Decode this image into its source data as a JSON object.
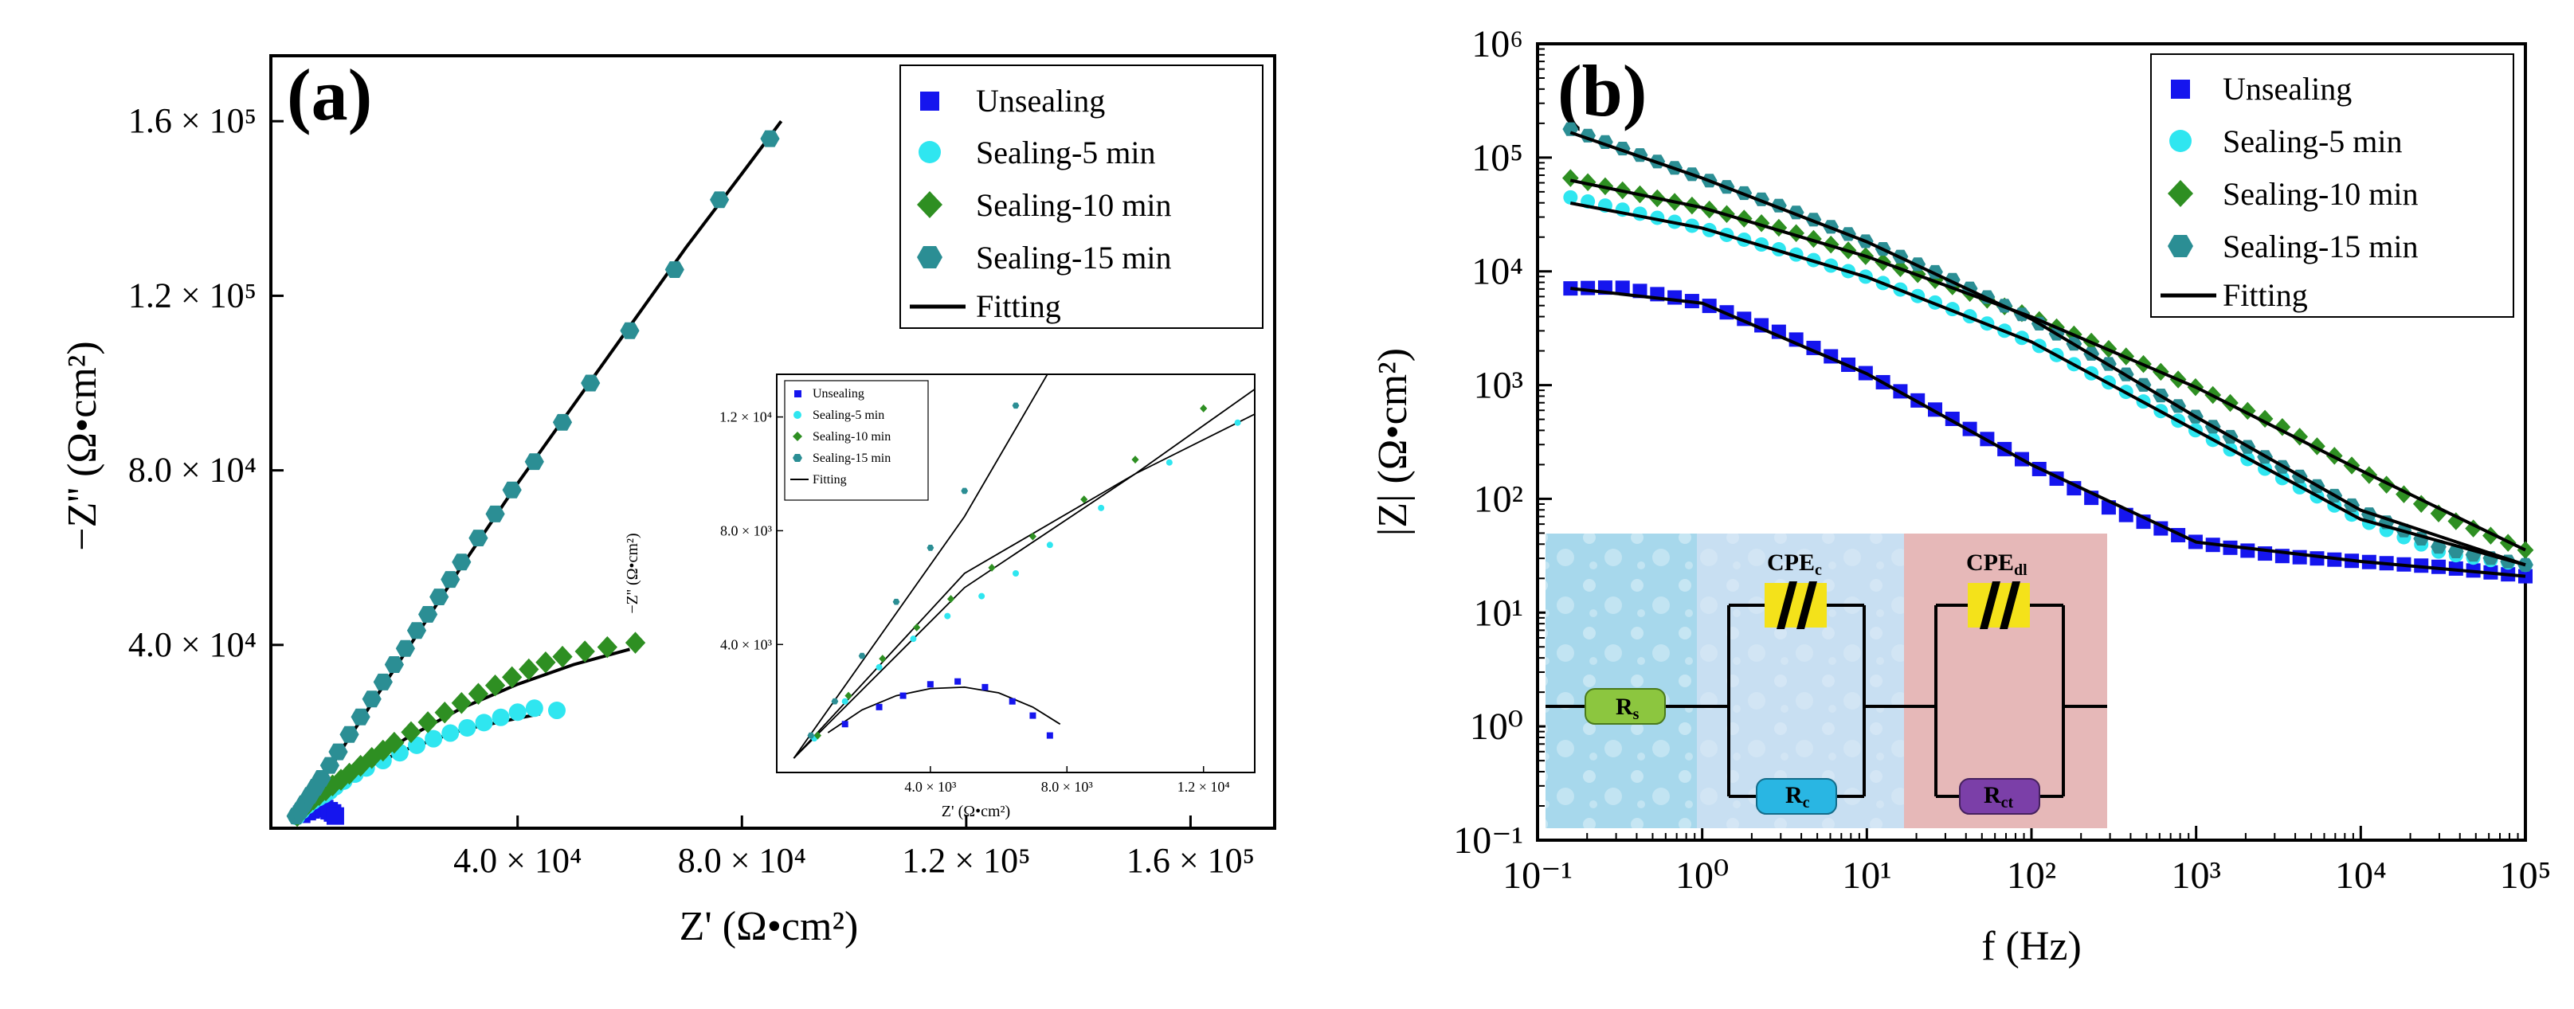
{
  "colors": {
    "unsealing": "#1515ee",
    "sealing5": "#2fe6f0",
    "sealing10": "#2e8f22",
    "sealing15": "#2b8e94",
    "fitting": "#000000",
    "panel_rs": "#a7d8ec",
    "panel_rc": "#c8dff2",
    "panel_rct": "#e6b8b8",
    "rs_fill": "#8cc63f",
    "rc_fill": "#29b6e3",
    "rct_fill": "#7b3fa8",
    "cpe_fill": "#f4e21a"
  },
  "chart_data": [
    {
      "id": "a",
      "type": "scatter",
      "panel_label": "(a)",
      "xlabel": "Z' (Ω•cm²)",
      "ylabel": "−Z'' (Ω•cm²)",
      "xlim": [
        -4000,
        175000
      ],
      "ylim": [
        -2000,
        175000
      ],
      "x_ticks": [
        {
          "value": 40000,
          "label": "4.0 × 10⁴"
        },
        {
          "value": 80000,
          "label": "8.0 × 10⁴"
        },
        {
          "value": 120000,
          "label": "1.2 × 10⁵"
        },
        {
          "value": 160000,
          "label": "1.6 × 10⁵"
        }
      ],
      "y_ticks": [
        {
          "value": 40000,
          "label": "4.0 × 10⁴"
        },
        {
          "value": 80000,
          "label": "8.0 × 10⁴"
        },
        {
          "value": 120000,
          "label": "1.2 × 10⁵"
        },
        {
          "value": 160000,
          "label": "1.6 × 10⁵"
        }
      ],
      "legend": {
        "position": "top-right",
        "entries": [
          "Unsealing",
          "Sealing-5 min",
          "Sealing-10 min",
          "Sealing-15 min",
          "Fitting"
        ]
      },
      "series": [
        {
          "name": "Unsealing",
          "marker": "square",
          "color_key": "unsealing",
          "points": [
            [
              1500,
              1200
            ],
            [
              2500,
              1800
            ],
            [
              3200,
              2200
            ],
            [
              4000,
              2600
            ],
            [
              4800,
              2700
            ],
            [
              5600,
              2500
            ],
            [
              6400,
              2000
            ],
            [
              7000,
              1500
            ],
            [
              7500,
              800
            ]
          ]
        },
        {
          "name": "Sealing-5 min",
          "marker": "circle",
          "color_key": "sealing5",
          "points": [
            [
              600,
              700
            ],
            [
              1500,
              2000
            ],
            [
              2500,
              3200
            ],
            [
              3500,
              4200
            ],
            [
              4500,
              5000
            ],
            [
              5500,
              5700
            ],
            [
              6500,
              6500
            ],
            [
              7500,
              7500
            ],
            [
              9000,
              8800
            ],
            [
              11000,
              10400
            ],
            [
              13000,
              11800
            ],
            [
              16000,
              13500
            ],
            [
              19000,
              15300
            ],
            [
              22000,
              17000
            ],
            [
              25000,
              18500
            ],
            [
              28000,
              19800
            ],
            [
              31000,
              21000
            ],
            [
              34000,
              22200
            ],
            [
              37000,
              23400
            ],
            [
              40000,
              24600
            ],
            [
              43000,
              25500
            ],
            [
              47000,
              25000
            ]
          ]
        },
        {
          "name": "Sealing-10 min",
          "marker": "diamond",
          "color_key": "sealing10",
          "points": [
            [
              700,
              800
            ],
            [
              1600,
              2200
            ],
            [
              2600,
              3500
            ],
            [
              3600,
              4600
            ],
            [
              4600,
              5600
            ],
            [
              5800,
              6700
            ],
            [
              7000,
              7800
            ],
            [
              8500,
              9100
            ],
            [
              10000,
              10500
            ],
            [
              12000,
              12300
            ],
            [
              14000,
              14100
            ],
            [
              16000,
              15800
            ],
            [
              18000,
              17600
            ],
            [
              21000,
              20000
            ],
            [
              24000,
              22300
            ],
            [
              27000,
              24500
            ],
            [
              30000,
              26700
            ],
            [
              33000,
              28800
            ],
            [
              36000,
              30700
            ],
            [
              39000,
              32600
            ],
            [
              42000,
              34400
            ],
            [
              45000,
              36000
            ],
            [
              48000,
              37300
            ],
            [
              52000,
              38500
            ],
            [
              56000,
              39500
            ],
            [
              61000,
              40500
            ]
          ]
        },
        {
          "name": "Sealing-15 min",
          "marker": "hexagon",
          "color_key": "sealing15",
          "points": [
            [
              500,
              800
            ],
            [
              1200,
              2000
            ],
            [
              2000,
              3600
            ],
            [
              3000,
              5500
            ],
            [
              4000,
              7400
            ],
            [
              5000,
              9400
            ],
            [
              6500,
              12400
            ],
            [
              8000,
              15500
            ],
            [
              10000,
              19500
            ],
            [
              12000,
              23500
            ],
            [
              14000,
              27600
            ],
            [
              16000,
              31500
            ],
            [
              18000,
              35500
            ],
            [
              20000,
              39200
            ],
            [
              22000,
              43300
            ],
            [
              24000,
              47000
            ],
            [
              26000,
              51000
            ],
            [
              28000,
              55000
            ],
            [
              30000,
              59000
            ],
            [
              33000,
              64500
            ],
            [
              36000,
              70000
            ],
            [
              39000,
              75500
            ],
            [
              43000,
              82000
            ],
            [
              48000,
              91000
            ],
            [
              53000,
              100000
            ],
            [
              60000,
              112000
            ],
            [
              68000,
              126000
            ],
            [
              76000,
              142000
            ],
            [
              85000,
              156000
            ]
          ]
        }
      ],
      "fits": [
        {
          "name": "Unsealing fit",
          "points": [
            [
              1000,
              900
            ],
            [
              2000,
              1700
            ],
            [
              3000,
              2200
            ],
            [
              4000,
              2450
            ],
            [
              5000,
              2500
            ],
            [
              6000,
              2300
            ],
            [
              7000,
              1800
            ],
            [
              7800,
              1200
            ]
          ]
        },
        {
          "name": "Sealing-5 min fit",
          "points": [
            [
              0,
              0
            ],
            [
              5000,
              6000
            ],
            [
              10000,
              10000
            ],
            [
              20000,
              16000
            ],
            [
              30000,
              20500
            ],
            [
              40000,
              23200
            ],
            [
              44000,
              24200
            ]
          ]
        },
        {
          "name": "Sealing-10 min fit",
          "points": [
            [
              0,
              0
            ],
            [
              5000,
              6500
            ],
            [
              10000,
              10000
            ],
            [
              20000,
              18500
            ],
            [
              30000,
              25500
            ],
            [
              40000,
              31000
            ],
            [
              50000,
              35500
            ],
            [
              60000,
              39000
            ]
          ]
        },
        {
          "name": "Sealing-15 min fit",
          "points": [
            [
              0,
              0
            ],
            [
              5000,
              8500
            ],
            [
              10000,
              18800
            ],
            [
              20000,
              38300
            ],
            [
              30000,
              58000
            ],
            [
              40000,
              77000
            ],
            [
              50000,
              95000
            ],
            [
              60000,
              113000
            ],
            [
              70000,
              131000
            ],
            [
              80000,
              148000
            ],
            [
              87000,
              160000
            ]
          ]
        }
      ],
      "inset": {
        "xlabel": "Z' (Ω•cm²)",
        "ylabel": "−Z'' (Ω•cm²)",
        "xlim": [
          -500,
          13500
        ],
        "ylim": [
          -500,
          13500
        ],
        "x_ticks": [
          {
            "value": 4000,
            "label": "4.0 × 10³"
          },
          {
            "value": 8000,
            "label": "8.0 × 10³"
          },
          {
            "value": 12000,
            "label": "1.2 × 10⁴"
          }
        ],
        "y_ticks": [
          {
            "value": 4000,
            "label": "4.0 × 10³"
          },
          {
            "value": 8000,
            "label": "8.0 × 10³"
          },
          {
            "value": 12000,
            "label": "1.2 × 10⁴"
          }
        ],
        "legend": [
          "Unsealing",
          "Sealing-5 min",
          "Sealing-10 min",
          "Sealing-15 min",
          "Fitting"
        ]
      }
    },
    {
      "id": "b",
      "type": "scatter",
      "panel_label": "(b)",
      "xlabel": "f (Hz)",
      "ylabel": "|Z| (Ω•cm²)",
      "xscale": "log",
      "yscale": "log",
      "xlim_exp": [
        -1,
        5
      ],
      "ylim_exp": [
        -1,
        6
      ],
      "x_ticks": [
        {
          "value": -1,
          "label": "10⁻¹"
        },
        {
          "value": 0,
          "label": "10⁰"
        },
        {
          "value": 1,
          "label": "10¹"
        },
        {
          "value": 2,
          "label": "10²"
        },
        {
          "value": 3,
          "label": "10³"
        },
        {
          "value": 4,
          "label": "10⁴"
        },
        {
          "value": 5,
          "label": "10⁵"
        }
      ],
      "y_ticks": [
        {
          "value": -1,
          "label": "10⁻¹"
        },
        {
          "value": 0,
          "label": "10⁰"
        },
        {
          "value": 1,
          "label": "10¹"
        },
        {
          "value": 2,
          "label": "10²"
        },
        {
          "value": 3,
          "label": "10³"
        },
        {
          "value": 4,
          "label": "10⁴"
        },
        {
          "value": 5,
          "label": "10⁵"
        },
        {
          "value": 6,
          "label": "10⁶"
        }
      ],
      "legend": {
        "position": "top-right",
        "entries": [
          "Unsealing",
          "Sealing-5 min",
          "Sealing-10 min",
          "Sealing-15 min",
          "Fitting"
        ]
      },
      "log_points": {
        "unsealing": [
          [
            -0.8,
            3.85
          ],
          [
            -0.5,
            3.86
          ],
          [
            -0.2,
            3.78
          ],
          [
            0,
            3.72
          ],
          [
            0.5,
            3.45
          ],
          [
            1,
            3.1
          ],
          [
            1.5,
            2.72
          ],
          [
            2,
            2.3
          ],
          [
            2.5,
            1.9
          ],
          [
            3,
            1.62
          ],
          [
            3.5,
            1.5
          ],
          [
            4,
            1.45
          ],
          [
            4.5,
            1.4
          ],
          [
            5,
            1.32
          ]
        ],
        "sealing5": [
          [
            -0.8,
            4.65
          ],
          [
            -0.3,
            4.48
          ],
          [
            0,
            4.38
          ],
          [
            0.5,
            4.18
          ],
          [
            1,
            3.95
          ],
          [
            1.5,
            3.68
          ],
          [
            2,
            3.38
          ],
          [
            2.5,
            3.0
          ],
          [
            3,
            2.6
          ],
          [
            3.5,
            2.2
          ],
          [
            4,
            1.82
          ],
          [
            4.5,
            1.52
          ],
          [
            5,
            1.42
          ]
        ],
        "sealing10": [
          [
            -0.8,
            4.82
          ],
          [
            -0.3,
            4.65
          ],
          [
            0,
            4.56
          ],
          [
            0.5,
            4.37
          ],
          [
            1,
            4.13
          ],
          [
            1.5,
            3.88
          ],
          [
            2,
            3.6
          ],
          [
            2.5,
            3.3
          ],
          [
            3,
            2.98
          ],
          [
            3.5,
            2.65
          ],
          [
            4,
            2.25
          ],
          [
            4.5,
            1.85
          ],
          [
            5,
            1.55
          ]
        ],
        "sealing15": [
          [
            -0.8,
            5.25
          ],
          [
            -0.3,
            4.98
          ],
          [
            0,
            4.82
          ],
          [
            0.5,
            4.56
          ],
          [
            1,
            4.26
          ],
          [
            1.5,
            3.94
          ],
          [
            2,
            3.58
          ],
          [
            2.5,
            3.16
          ],
          [
            3,
            2.72
          ],
          [
            3.5,
            2.3
          ],
          [
            4,
            1.9
          ],
          [
            4.5,
            1.56
          ],
          [
            5,
            1.42
          ]
        ]
      },
      "fits_log": {
        "unsealing": [
          [
            -0.8,
            3.85
          ],
          [
            0,
            3.72
          ],
          [
            1,
            3.1
          ],
          [
            2,
            2.3
          ],
          [
            3,
            1.62
          ],
          [
            4,
            1.45
          ],
          [
            5,
            1.32
          ]
        ],
        "sealing5": [
          [
            -0.8,
            4.6
          ],
          [
            0,
            4.38
          ],
          [
            1,
            3.95
          ],
          [
            2,
            3.38
          ],
          [
            3,
            2.6
          ],
          [
            4,
            1.82
          ],
          [
            5,
            1.42
          ]
        ],
        "sealing10": [
          [
            -0.8,
            4.8
          ],
          [
            0,
            4.56
          ],
          [
            1,
            4.13
          ],
          [
            2,
            3.6
          ],
          [
            3,
            2.98
          ],
          [
            4,
            2.25
          ],
          [
            5,
            1.55
          ]
        ],
        "sealing15": [
          [
            -0.8,
            5.22
          ],
          [
            0,
            4.82
          ],
          [
            1,
            4.26
          ],
          [
            2,
            3.58
          ],
          [
            3,
            2.72
          ],
          [
            4,
            1.9
          ],
          [
            5,
            1.42
          ]
        ]
      },
      "circuit": {
        "elements": [
          "Rs",
          "CPEc",
          "Rc",
          "CPEdl",
          "Rct"
        ]
      }
    }
  ]
}
